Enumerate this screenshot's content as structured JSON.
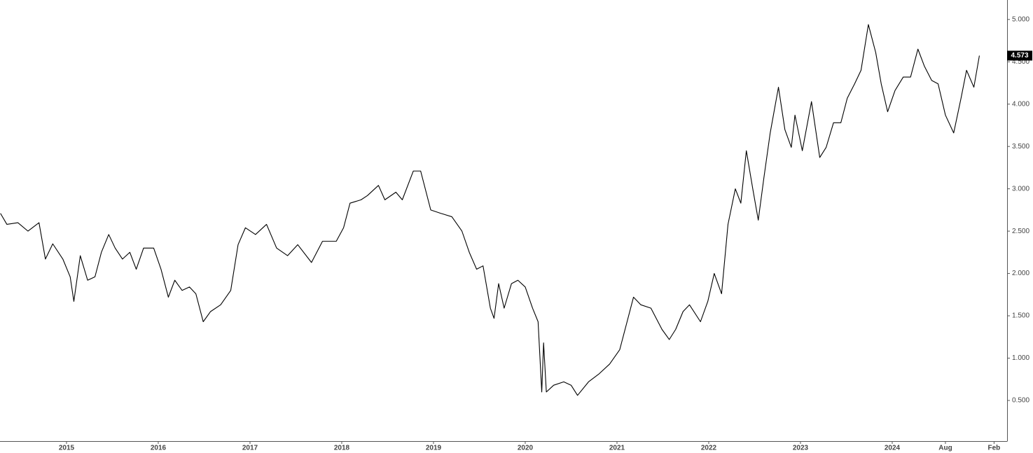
{
  "chart_data": {
    "type": "line",
    "color": "#000000",
    "x": [
      2014.28,
      2014.35,
      2014.47,
      2014.58,
      2014.7,
      2014.77,
      2014.85,
      2014.96,
      2015.04,
      2015.08,
      2015.15,
      2015.23,
      2015.31,
      2015.38,
      2015.46,
      2015.53,
      2015.61,
      2015.69,
      2015.76,
      2015.84,
      2015.95,
      2016.03,
      2016.11,
      2016.18,
      2016.26,
      2016.34,
      2016.41,
      2016.49,
      2016.57,
      2016.68,
      2016.79,
      2016.87,
      2016.95,
      2017.06,
      2017.18,
      2017.29,
      2017.41,
      2017.52,
      2017.67,
      2017.79,
      2017.94,
      2018.02,
      2018.09,
      2018.21,
      2018.28,
      2018.4,
      2018.47,
      2018.59,
      2018.66,
      2018.78,
      2018.86,
      2018.97,
      2019.08,
      2019.2,
      2019.31,
      2019.39,
      2019.47,
      2019.54,
      2019.62,
      2019.66,
      2019.71,
      2019.77,
      2019.85,
      2019.92,
      2020.0,
      2020.08,
      2020.14,
      2020.18,
      2020.2,
      2020.23,
      2020.31,
      2020.42,
      2020.5,
      2020.57,
      2020.69,
      2020.8,
      2020.92,
      2021.03,
      2021.11,
      2021.18,
      2021.26,
      2021.37,
      2021.49,
      2021.57,
      2021.64,
      2021.72,
      2021.79,
      2021.91,
      2021.99,
      2022.06,
      2022.14,
      2022.21,
      2022.29,
      2022.35,
      2022.41,
      2022.48,
      2022.54,
      2022.6,
      2022.67,
      2022.76,
      2022.83,
      2022.9,
      2022.94,
      2023.02,
      2023.12,
      2023.21,
      2023.28,
      2023.36,
      2023.44,
      2023.51,
      2023.59,
      2023.66,
      2023.74,
      2023.82,
      2023.88,
      2023.95,
      2024.03,
      2024.12,
      2024.2,
      2024.28,
      2024.35,
      2024.43,
      2024.5,
      2024.58,
      2024.67,
      2024.75,
      2024.81,
      2024.89,
      2024.95
    ],
    "values": [
      2.71,
      2.58,
      2.6,
      2.5,
      2.6,
      2.17,
      2.35,
      2.17,
      1.96,
      1.67,
      2.21,
      1.92,
      1.96,
      2.25,
      2.46,
      2.3,
      2.17,
      2.25,
      2.05,
      2.3,
      2.3,
      2.05,
      1.72,
      1.92,
      1.8,
      1.84,
      1.76,
      1.43,
      1.55,
      1.63,
      1.8,
      2.34,
      2.54,
      2.46,
      2.58,
      2.3,
      2.21,
      2.34,
      2.13,
      2.38,
      2.38,
      2.54,
      2.83,
      2.87,
      2.92,
      3.04,
      2.87,
      2.96,
      2.87,
      3.21,
      3.21,
      2.75,
      2.71,
      2.67,
      2.5,
      2.25,
      2.05,
      2.09,
      1.59,
      1.47,
      1.88,
      1.59,
      1.88,
      1.92,
      1.84,
      1.59,
      1.43,
      0.6,
      1.18,
      0.6,
      0.68,
      0.72,
      0.68,
      0.56,
      0.72,
      0.81,
      0.93,
      1.1,
      1.43,
      1.72,
      1.63,
      1.59,
      1.34,
      1.22,
      1.34,
      1.55,
      1.63,
      1.43,
      1.67,
      2.0,
      1.76,
      2.58,
      3.0,
      2.83,
      3.45,
      3.0,
      2.63,
      3.12,
      3.66,
      4.2,
      3.7,
      3.49,
      3.87,
      3.45,
      4.03,
      3.37,
      3.49,
      3.78,
      3.78,
      4.07,
      4.24,
      4.4,
      4.94,
      4.61,
      4.24,
      3.91,
      4.16,
      4.32,
      4.32,
      4.65,
      4.45,
      4.28,
      4.24,
      3.87,
      3.66,
      4.07,
      4.4,
      4.2,
      4.573
    ],
    "xlim": [
      2014.275,
      2025.252
    ],
    "xticks": [
      2015,
      2016,
      2017,
      2018,
      2019,
      2020,
      2021,
      2022,
      2023,
      2024,
      {
        "value": 2024.58,
        "label": "Aug"
      },
      {
        "value": 2025.11,
        "label": "Feb"
      }
    ],
    "ylim": [
      0.02,
      5.23
    ],
    "yticks": [
      {
        "value": 0.5,
        "label": "0.500"
      },
      {
        "value": 1,
        "label": "1.000"
      },
      {
        "value": 1.5,
        "label": "1.500"
      },
      {
        "value": 2,
        "label": "2.000"
      },
      {
        "value": 2.5,
        "label": "2.500"
      },
      {
        "value": 3,
        "label": "3.000"
      },
      {
        "value": 3.5,
        "label": "3.500"
      },
      {
        "value": 4,
        "label": "4.000"
      },
      {
        "value": 4.5,
        "label": "4.500"
      },
      {
        "value": 5,
        "label": "5.000"
      }
    ],
    "grid": false
  }
}
